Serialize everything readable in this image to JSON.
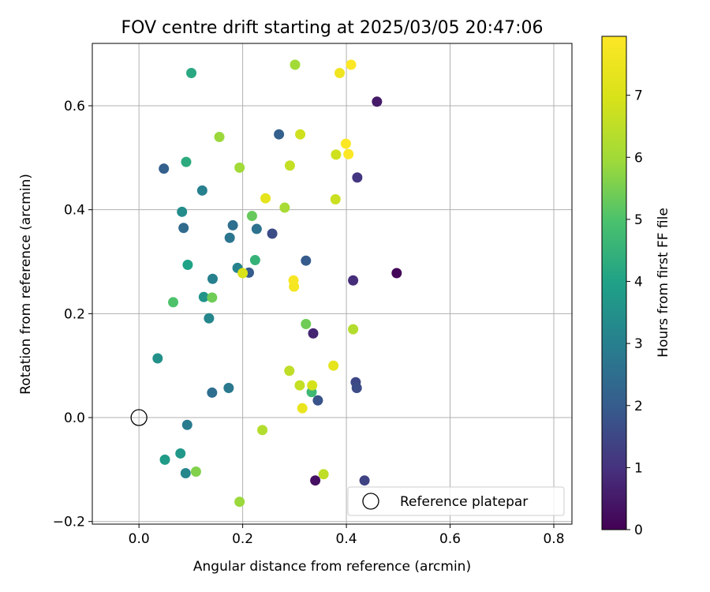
{
  "chart_data": {
    "type": "scatter",
    "title": "FOV centre drift starting at 2025/03/05 20:47:06",
    "xlabel": "Angular distance from reference (arcmin)",
    "ylabel": "Rotation from reference (arcmin)",
    "xlim": [
      -0.09,
      0.835
    ],
    "ylim": [
      -0.205,
      0.72
    ],
    "x_ticks": [
      0.0,
      0.2,
      0.4,
      0.6,
      0.8
    ],
    "x_tick_labels": [
      "0.0",
      "0.2",
      "0.4",
      "0.6",
      "0.8"
    ],
    "y_ticks": [
      -0.2,
      0.0,
      0.2,
      0.4,
      0.6
    ],
    "y_tick_labels": [
      "−0.2",
      "0.0",
      "0.2",
      "0.4",
      "0.6"
    ],
    "grid": true,
    "colormap": "viridis",
    "colorbar": {
      "label": "Hours from first FF file",
      "range": [
        0,
        7.95
      ],
      "ticks": [
        0,
        1,
        2,
        3,
        4,
        5,
        6,
        7
      ],
      "tick_labels": [
        "0",
        "1",
        "2",
        "3",
        "4",
        "5",
        "6",
        "7"
      ]
    },
    "legend": {
      "position": "lower-right",
      "entries": [
        "Reference platepar"
      ]
    },
    "reference_point": {
      "x": 0.0,
      "y": 0.0,
      "label": "Reference platepar"
    },
    "points": [
      {
        "x": 0.497,
        "y": 0.278,
        "hours": 0.1
      },
      {
        "x": 0.34,
        "y": -0.121,
        "hours": 0.3
      },
      {
        "x": 0.459,
        "y": 0.608,
        "hours": 0.5
      },
      {
        "x": 0.336,
        "y": 0.162,
        "hours": 0.7
      },
      {
        "x": 0.413,
        "y": 0.264,
        "hours": 0.9
      },
      {
        "x": 0.421,
        "y": 0.462,
        "hours": 1.1
      },
      {
        "x": 0.435,
        "y": -0.121,
        "hours": 1.4
      },
      {
        "x": 0.418,
        "y": 0.068,
        "hours": 1.5
      },
      {
        "x": 0.42,
        "y": 0.057,
        "hours": 1.6
      },
      {
        "x": 0.257,
        "y": 0.354,
        "hours": 1.6
      },
      {
        "x": 0.345,
        "y": 0.033,
        "hours": 1.8
      },
      {
        "x": 0.322,
        "y": 0.302,
        "hours": 2.0
      },
      {
        "x": 0.212,
        "y": 0.279,
        "hours": 2.0
      },
      {
        "x": 0.048,
        "y": 0.479,
        "hours": 2.1
      },
      {
        "x": 0.27,
        "y": 0.545,
        "hours": 2.1
      },
      {
        "x": 0.086,
        "y": 0.365,
        "hours": 2.4
      },
      {
        "x": 0.181,
        "y": 0.37,
        "hours": 2.5
      },
      {
        "x": 0.141,
        "y": 0.048,
        "hours": 2.5
      },
      {
        "x": 0.227,
        "y": 0.363,
        "hours": 2.6
      },
      {
        "x": 0.175,
        "y": 0.346,
        "hours": 2.7
      },
      {
        "x": 0.173,
        "y": 0.057,
        "hours": 2.8
      },
      {
        "x": 0.093,
        "y": -0.014,
        "hours": 2.9
      },
      {
        "x": 0.142,
        "y": 0.267,
        "hours": 3.0
      },
      {
        "x": 0.122,
        "y": 0.437,
        "hours": 3.0
      },
      {
        "x": 0.19,
        "y": 0.288,
        "hours": 3.1
      },
      {
        "x": 0.135,
        "y": 0.191,
        "hours": 3.2
      },
      {
        "x": 0.09,
        "y": -0.107,
        "hours": 3.2
      },
      {
        "x": 0.036,
        "y": 0.114,
        "hours": 3.5
      },
      {
        "x": 0.083,
        "y": 0.396,
        "hours": 3.4
      },
      {
        "x": 0.125,
        "y": 0.232,
        "hours": 3.6
      },
      {
        "x": 0.08,
        "y": -0.069,
        "hours": 3.7
      },
      {
        "x": 0.05,
        "y": -0.081,
        "hours": 3.8
      },
      {
        "x": 0.094,
        "y": 0.294,
        "hours": 4.0
      },
      {
        "x": 0.101,
        "y": 0.663,
        "hours": 4.2
      },
      {
        "x": 0.091,
        "y": 0.492,
        "hours": 4.3
      },
      {
        "x": 0.224,
        "y": 0.303,
        "hours": 4.5
      },
      {
        "x": 0.333,
        "y": 0.049,
        "hours": 4.7
      },
      {
        "x": 0.066,
        "y": 0.222,
        "hours": 5.0
      },
      {
        "x": 0.218,
        "y": 0.388,
        "hours": 5.3
      },
      {
        "x": 0.141,
        "y": 0.231,
        "hours": 5.4
      },
      {
        "x": 0.322,
        "y": 0.18,
        "hours": 5.4
      },
      {
        "x": 0.11,
        "y": -0.104,
        "hours": 5.6
      },
      {
        "x": 0.155,
        "y": 0.54,
        "hours": 5.9
      },
      {
        "x": 0.194,
        "y": -0.162,
        "hours": 5.9
      },
      {
        "x": 0.194,
        "y": 0.481,
        "hours": 6.0
      },
      {
        "x": 0.281,
        "y": 0.404,
        "hours": 6.1
      },
      {
        "x": 0.301,
        "y": 0.679,
        "hours": 6.0
      },
      {
        "x": 0.413,
        "y": 0.17,
        "hours": 6.3
      },
      {
        "x": 0.238,
        "y": -0.024,
        "hours": 6.3
      },
      {
        "x": 0.29,
        "y": 0.09,
        "hours": 6.5
      },
      {
        "x": 0.356,
        "y": -0.109,
        "hours": 6.5
      },
      {
        "x": 0.291,
        "y": 0.485,
        "hours": 6.6
      },
      {
        "x": 0.31,
        "y": 0.062,
        "hours": 6.6
      },
      {
        "x": 0.379,
        "y": 0.42,
        "hours": 6.7
      },
      {
        "x": 0.38,
        "y": 0.506,
        "hours": 6.8
      },
      {
        "x": 0.311,
        "y": 0.545,
        "hours": 6.8
      },
      {
        "x": 0.334,
        "y": 0.062,
        "hours": 6.9
      },
      {
        "x": 0.2,
        "y": 0.278,
        "hours": 7.0
      },
      {
        "x": 0.244,
        "y": 0.422,
        "hours": 7.3
      },
      {
        "x": 0.375,
        "y": 0.1,
        "hours": 7.3
      },
      {
        "x": 0.315,
        "y": 0.018,
        "hours": 7.4
      },
      {
        "x": 0.387,
        "y": 0.663,
        "hours": 7.6
      },
      {
        "x": 0.299,
        "y": 0.252,
        "hours": 7.7
      },
      {
        "x": 0.298,
        "y": 0.264,
        "hours": 7.8
      },
      {
        "x": 0.399,
        "y": 0.527,
        "hours": 7.9
      },
      {
        "x": 0.404,
        "y": 0.507,
        "hours": 7.9
      },
      {
        "x": 0.409,
        "y": 0.679,
        "hours": 7.9
      }
    ]
  }
}
